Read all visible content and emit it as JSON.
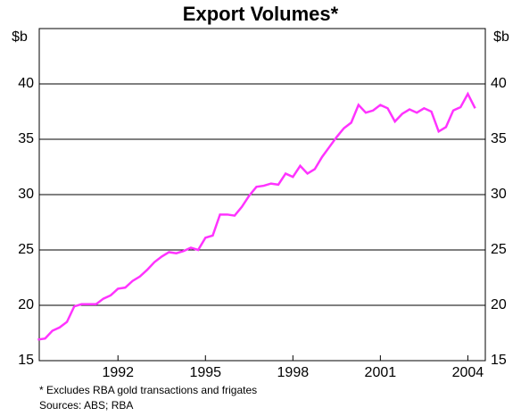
{
  "chart_data": {
    "type": "line",
    "title": "Export Volumes*",
    "y_label": "$b",
    "y2_label": "$b",
    "x": [
      1989.25,
      1989.5,
      1989.75,
      1990,
      1990.25,
      1990.5,
      1990.75,
      1991,
      1991.25,
      1991.5,
      1991.75,
      1992,
      1992.25,
      1992.5,
      1992.75,
      1993,
      1993.25,
      1993.5,
      1993.75,
      1994,
      1994.25,
      1994.5,
      1994.75,
      1995,
      1995.25,
      1995.5,
      1995.75,
      1996,
      1996.25,
      1996.5,
      1996.75,
      1997,
      1997.25,
      1997.5,
      1997.75,
      1998,
      1998.25,
      1998.5,
      1998.75,
      1999,
      1999.25,
      1999.5,
      1999.75,
      2000,
      2000.25,
      2000.5,
      2000.75,
      2001,
      2001.25,
      2001.5,
      2001.75,
      2002,
      2002.25,
      2002.5,
      2002.75,
      2003,
      2003.25,
      2003.5,
      2003.75,
      2004,
      2004.25
    ],
    "series": [
      {
        "name": "Export volumes",
        "color": "#ff33ff",
        "values": [
          16.9,
          17.0,
          17.7,
          18.0,
          18.5,
          19.9,
          20.1,
          20.1,
          20.1,
          20.6,
          20.9,
          21.5,
          21.6,
          22.2,
          22.6,
          23.2,
          23.9,
          24.4,
          24.8,
          24.7,
          24.9,
          25.2,
          25.0,
          26.1,
          26.3,
          28.2,
          28.2,
          28.1,
          28.9,
          29.9,
          30.7,
          30.8,
          31.0,
          30.9,
          31.9,
          31.6,
          32.6,
          31.9,
          32.3,
          33.4,
          34.3,
          35.2,
          36.0,
          36.5,
          38.1,
          37.4,
          37.6,
          38.1,
          37.8,
          36.6,
          37.3,
          37.7,
          37.4,
          37.8,
          37.5,
          35.7,
          36.1,
          37.6,
          37.9,
          39.1,
          37.8
        ]
      }
    ],
    "xlim": [
      1989.3,
      2004.6
    ],
    "xticks": [
      1992,
      1995,
      1998,
      2001,
      2004
    ],
    "ylim": [
      15,
      45
    ],
    "yticks": [
      15,
      20,
      25,
      30,
      35,
      40
    ],
    "grid": true,
    "footnotes": [
      "*   Excludes RBA gold transactions and frigates",
      "Sources: ABS; RBA"
    ]
  }
}
